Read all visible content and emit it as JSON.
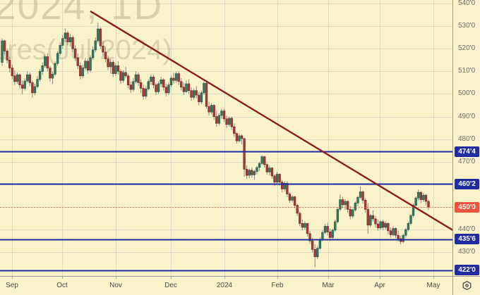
{
  "watermark": {
    "line1": "2024, 1D",
    "line2": "ures(Jul 2024)"
  },
  "colors": {
    "background": "#FAF3CA",
    "gridline": "rgba(155,160,185,0.28)",
    "candle_up": "#35795F",
    "candle_up_border": "#27604B",
    "candle_down": "#A33B38",
    "candle_down_border": "#832C2A",
    "wick": "#7D7D7D",
    "trendline": "#8E1D1D",
    "level_line": "#1F2B9E",
    "last_price": "#EC5340",
    "axis_text": "#6A6A6A",
    "month_text": "#4C4C4C",
    "badge_text": "#FFFFFF"
  },
  "price_axis": {
    "ticks": [
      {
        "label": "540'0",
        "price": 540
      },
      {
        "label": "530'0",
        "price": 530
      },
      {
        "label": "520'0",
        "price": 520
      },
      {
        "label": "510'0",
        "price": 510
      },
      {
        "label": "500'0",
        "price": 500
      },
      {
        "label": "490'0",
        "price": 490
      },
      {
        "label": "480'0",
        "price": 480
      },
      {
        "label": "470'0",
        "price": 470
      },
      {
        "label": "440'0",
        "price": 440
      },
      {
        "label": "430'0",
        "price": 430
      }
    ]
  },
  "time_axis": {
    "labels": [
      {
        "label": "Sep",
        "x": 17
      },
      {
        "label": "Oct",
        "x": 88
      },
      {
        "label": "Nov",
        "x": 164
      },
      {
        "label": "Dec",
        "x": 242
      },
      {
        "label": "2024",
        "x": 318
      },
      {
        "label": "Feb",
        "x": 393
      },
      {
        "label": "Mar",
        "x": 465
      },
      {
        "label": "Apr",
        "x": 538
      },
      {
        "label": "May",
        "x": 614
      }
    ]
  },
  "chart_data": {
    "type": "candlestick",
    "timeframe": "1D",
    "ylim": [
      419.5,
      541.56
    ],
    "grid_prices": [
      540,
      530,
      520,
      510,
      500,
      490,
      480,
      470,
      460,
      450,
      440,
      430
    ],
    "x0": 3,
    "dx": 3.574,
    "levels": [
      {
        "label": "474'4",
        "price": 474.5
      },
      {
        "label": "460'2",
        "price": 460.25
      },
      {
        "label": "435'6",
        "price": 435.75
      },
      {
        "label": "422'0",
        "price": 422.0
      }
    ],
    "last_price": {
      "label": "450'0",
      "price": 450.0
    },
    "trendline": {
      "x1": 128,
      "price1": 536.6,
      "x2": 644,
      "price2": 439.3
    },
    "candles": [
      [
        514,
        524.5,
        512.5,
        523.5
      ],
      [
        523.5,
        524,
        517.5,
        519
      ],
      [
        519,
        520,
        513.5,
        515
      ],
      [
        515,
        516.5,
        509.5,
        511.5
      ],
      [
        511.5,
        513,
        506.5,
        508
      ],
      [
        508,
        510.5,
        504,
        505.5
      ],
      [
        505.5,
        509.5,
        504.5,
        508.5
      ],
      [
        508.5,
        509,
        502.5,
        504
      ],
      [
        504,
        506,
        500,
        502.5
      ],
      [
        502.5,
        507,
        501.5,
        505.75
      ],
      [
        505.75,
        510,
        505,
        508.5
      ],
      [
        508.5,
        509.5,
        503.5,
        505
      ],
      [
        505,
        506,
        498.5,
        500.5
      ],
      [
        500.5,
        504.5,
        499.5,
        503.25
      ],
      [
        503.25,
        508,
        502.5,
        506.5
      ],
      [
        506.5,
        511,
        505.5,
        510
      ],
      [
        510,
        514,
        508.5,
        512.5
      ],
      [
        512.5,
        517.5,
        511.5,
        516.5
      ],
      [
        516.5,
        518,
        510,
        511.5
      ],
      [
        511.5,
        512.5,
        505.5,
        507
      ],
      [
        507,
        510,
        504.5,
        508.75
      ],
      [
        508.75,
        514.5,
        508,
        513.5
      ],
      [
        513.5,
        519,
        512.5,
        518
      ],
      [
        518,
        523,
        517,
        521.5
      ],
      [
        521.5,
        526,
        520,
        524.5
      ],
      [
        524.5,
        529,
        523,
        527
      ],
      [
        527,
        528,
        521.5,
        523
      ],
      [
        523,
        526.5,
        521,
        525
      ],
      [
        525,
        526,
        518.5,
        520
      ],
      [
        520,
        521.5,
        514.5,
        516
      ],
      [
        516,
        518,
        511,
        512.5
      ],
      [
        512.5,
        514,
        506.5,
        508
      ],
      [
        508,
        513,
        507,
        511.5
      ],
      [
        511.5,
        516,
        510.5,
        514.5
      ],
      [
        514.5,
        515.5,
        509,
        510.5
      ],
      [
        510.5,
        517,
        509.5,
        516
      ],
      [
        516,
        521,
        515,
        519.5
      ],
      [
        519.5,
        525,
        518.5,
        523.5
      ],
      [
        523.5,
        531.5,
        522.5,
        528.75
      ],
      [
        528.75,
        529.5,
        520,
        521.25
      ],
      [
        521.25,
        523.5,
        517,
        518.5
      ],
      [
        518.5,
        521,
        514,
        515.5
      ],
      [
        515.5,
        517,
        510.5,
        512
      ],
      [
        512,
        515.5,
        509,
        514
      ],
      [
        514,
        515,
        507.5,
        509
      ],
      [
        509,
        513.5,
        508,
        512.5
      ],
      [
        512.5,
        514.5,
        508.5,
        510
      ],
      [
        510,
        511,
        504.5,
        506
      ],
      [
        506,
        510.5,
        505,
        509.5
      ],
      [
        509.5,
        512,
        507,
        508
      ],
      [
        508,
        509,
        502.5,
        504
      ],
      [
        504,
        505.5,
        500.5,
        502
      ],
      [
        502,
        507,
        501,
        505.5
      ],
      [
        505.5,
        510,
        504.5,
        508.5
      ],
      [
        508.5,
        509.5,
        503.5,
        505
      ],
      [
        505,
        506.5,
        500.5,
        502.5
      ],
      [
        502.5,
        504,
        497.5,
        499
      ],
      [
        499,
        503.5,
        498,
        502.25
      ],
      [
        502.25,
        506.5,
        501.5,
        505.5
      ],
      [
        505.5,
        508.5,
        504,
        507.5
      ],
      [
        507.5,
        508.5,
        502.5,
        504
      ],
      [
        504,
        505,
        499.5,
        501
      ],
      [
        501,
        505.5,
        500,
        504.5
      ],
      [
        504.5,
        507.5,
        503,
        506.25
      ],
      [
        506.25,
        507,
        501.5,
        503
      ],
      [
        503,
        504.5,
        499,
        500.5
      ],
      [
        500.5,
        505,
        499.5,
        504
      ],
      [
        504,
        508,
        503,
        507
      ],
      [
        507,
        509.5,
        504.5,
        506
      ],
      [
        506,
        510,
        505,
        509
      ],
      [
        509,
        510,
        504,
        505.5
      ],
      [
        505.5,
        507,
        501.5,
        503
      ],
      [
        503,
        505,
        499.5,
        501
      ],
      [
        501,
        506,
        500.5,
        504.5
      ],
      [
        504.5,
        506.5,
        500,
        501.5
      ],
      [
        501.5,
        503,
        497,
        498.5
      ],
      [
        498.5,
        502.5,
        497.5,
        501.5
      ],
      [
        501.5,
        503.5,
        498,
        499.5
      ],
      [
        499.5,
        501,
        495,
        496.5
      ],
      [
        496.5,
        501.5,
        495.5,
        500.5
      ],
      [
        500.5,
        505.5,
        499.5,
        504.75
      ],
      [
        504.75,
        505.5,
        493.5,
        494.5
      ],
      [
        494.5,
        496.5,
        490.5,
        492
      ],
      [
        492,
        496,
        491,
        495
      ],
      [
        495,
        495.5,
        488.5,
        490
      ],
      [
        490,
        492.5,
        485.5,
        487
      ],
      [
        487,
        491.5,
        486,
        490.5
      ],
      [
        490.5,
        493.5,
        489,
        492.5
      ],
      [
        492.5,
        493.5,
        487.5,
        489
      ],
      [
        489,
        490.5,
        485,
        486.5
      ],
      [
        486.5,
        490,
        485.5,
        489.25
      ],
      [
        489.25,
        490,
        484,
        485.5
      ],
      [
        485.5,
        487,
        481,
        482.5
      ],
      [
        482.5,
        483,
        478,
        479.25
      ],
      [
        479.25,
        482.5,
        478.5,
        481.5
      ],
      [
        481.5,
        482,
        477.75,
        480.25
      ],
      [
        480.25,
        480.75,
        463.5,
        466.75
      ],
      [
        466.75,
        468.5,
        462.5,
        464
      ],
      [
        464,
        467,
        462.75,
        466.25
      ],
      [
        466.25,
        467.5,
        463,
        464.25
      ],
      [
        464.25,
        466.5,
        462,
        465.75
      ],
      [
        465.75,
        468.25,
        464.5,
        467.5
      ],
      [
        467.5,
        470,
        466,
        469.25
      ],
      [
        469.25,
        473,
        468.5,
        472.25
      ],
      [
        472.25,
        472.75,
        467.5,
        468.75
      ],
      [
        468.75,
        469.5,
        464.25,
        465.5
      ],
      [
        465.5,
        468.25,
        464,
        467.25
      ],
      [
        467.25,
        467.75,
        462.5,
        463.75
      ],
      [
        463.75,
        464.5,
        459.25,
        461
      ],
      [
        461,
        465.5,
        460.5,
        464.5
      ],
      [
        464.5,
        465,
        459.5,
        461
      ],
      [
        461,
        462,
        456.5,
        458
      ],
      [
        458,
        461.5,
        457,
        460.5
      ],
      [
        460.5,
        461.5,
        454.5,
        455.75
      ],
      [
        455.75,
        456.5,
        451.75,
        453
      ],
      [
        453,
        455.25,
        452,
        454.5
      ],
      [
        454.5,
        455,
        449.5,
        450.75
      ],
      [
        450.75,
        451.5,
        446,
        447.25
      ],
      [
        447.25,
        448,
        441.5,
        442.75
      ],
      [
        442.75,
        444.5,
        439.75,
        441
      ],
      [
        441,
        443.75,
        440,
        442.75
      ],
      [
        442.75,
        443,
        437,
        438.25
      ],
      [
        438.25,
        439.5,
        433.75,
        435
      ],
      [
        435,
        436.25,
        430,
        431.25
      ],
      [
        431.25,
        433.5,
        423.5,
        428
      ],
      [
        428,
        432.75,
        427,
        431.75
      ],
      [
        431.75,
        436.5,
        431,
        435.5
      ],
      [
        435.5,
        439.75,
        434.75,
        438.75
      ],
      [
        438.75,
        442.5,
        438,
        441.5
      ],
      [
        441.5,
        443,
        437.5,
        439
      ],
      [
        439,
        440.5,
        435,
        436.5
      ],
      [
        436.5,
        440.5,
        435.5,
        439.75
      ],
      [
        439.75,
        444.5,
        439,
        443.5
      ],
      [
        443.5,
        450,
        442.75,
        449
      ],
      [
        449,
        455.5,
        448,
        453.25
      ],
      [
        453.25,
        454.5,
        449.5,
        451
      ],
      [
        451,
        453.5,
        448.75,
        452.5
      ],
      [
        452.5,
        453,
        447.5,
        449
      ],
      [
        449,
        450.5,
        444.5,
        446
      ],
      [
        446,
        449.5,
        445,
        448.75
      ],
      [
        448.75,
        452.5,
        448,
        451.75
      ],
      [
        451.75,
        455,
        450.5,
        454.25
      ],
      [
        454.25,
        459,
        453.5,
        456.75
      ],
      [
        456.75,
        457.25,
        451.5,
        453
      ],
      [
        453,
        454,
        447.5,
        449
      ],
      [
        449,
        451.75,
        438.25,
        442
      ],
      [
        442,
        447,
        441,
        446.25
      ],
      [
        446.25,
        448.5,
        443.5,
        444.75
      ],
      [
        444.75,
        446,
        441,
        442.5
      ],
      [
        442.5,
        444.5,
        439.5,
        440.75
      ],
      [
        440.75,
        444.25,
        440,
        443.5
      ],
      [
        443.5,
        444.5,
        439.75,
        441
      ],
      [
        441,
        443.75,
        440,
        442.75
      ],
      [
        442.75,
        443.25,
        438,
        439.5
      ],
      [
        439.5,
        441,
        436.5,
        437.75
      ],
      [
        437.75,
        441.5,
        437,
        440.5
      ],
      [
        440.5,
        441,
        436.25,
        437.5
      ],
      [
        437.5,
        439.5,
        434.75,
        436
      ],
      [
        436,
        437.25,
        433.5,
        434.75
      ],
      [
        434.75,
        438.25,
        434,
        437.5
      ],
      [
        437.5,
        440.75,
        436.5,
        440
      ],
      [
        440,
        443.5,
        439.25,
        442.75
      ],
      [
        442.75,
        447,
        442,
        446.25
      ],
      [
        446.25,
        451.5,
        445.5,
        450.75
      ],
      [
        450.75,
        454.75,
        450,
        454
      ],
      [
        454,
        457.75,
        452.75,
        456.5
      ],
      [
        456.5,
        457,
        451.75,
        453.25
      ],
      [
        453.25,
        456.25,
        452.25,
        455.25
      ],
      [
        455.25,
        455.75,
        450.75,
        452.5
      ],
      [
        452.5,
        453.25,
        448.75,
        450
      ]
    ]
  }
}
